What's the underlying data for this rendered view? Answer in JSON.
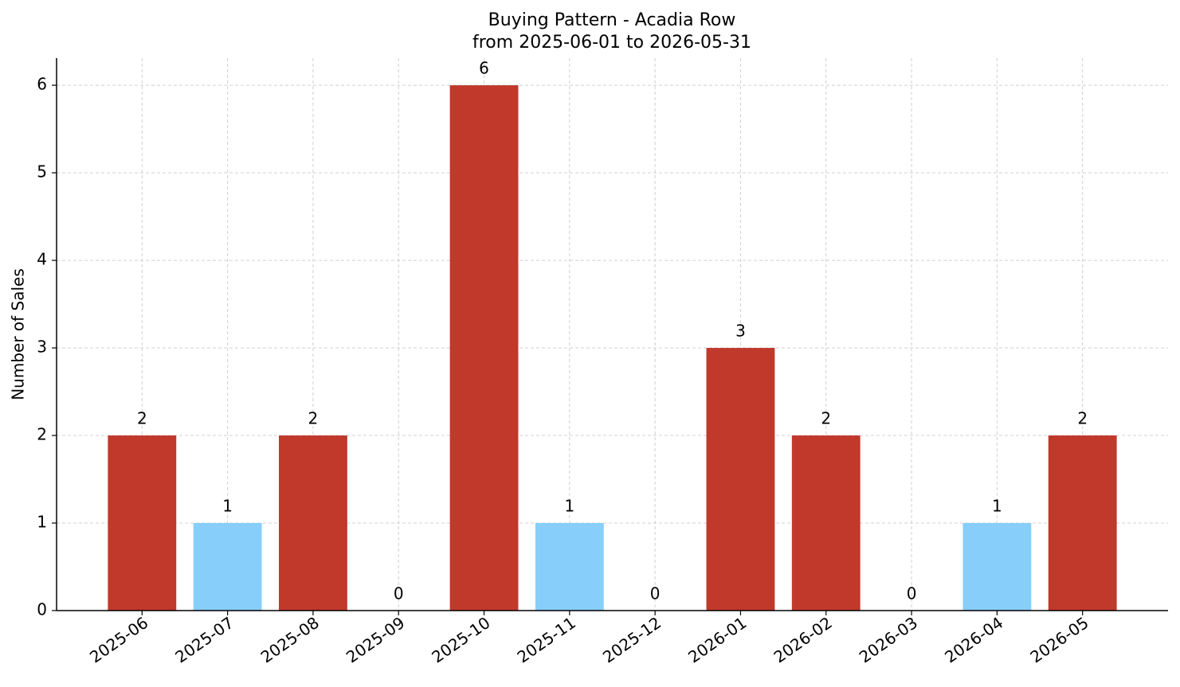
{
  "chart_data": {
    "type": "bar",
    "title": "Buying Pattern - Acadia Row",
    "subtitle": "from 2025-06-01 to 2026-05-31",
    "y_label": "Number of Sales",
    "categories": [
      "2025-06",
      "2025-07",
      "2025-08",
      "2025-09",
      "2025-10",
      "2025-11",
      "2025-12",
      "2026-01",
      "2026-02",
      "2026-03",
      "2026-04",
      "2026-05"
    ],
    "values": [
      2,
      1,
      2,
      0,
      6,
      1,
      0,
      3,
      2,
      0,
      1,
      2
    ],
    "colors": [
      "#c0392b",
      "#87cefa",
      "#c0392b",
      "#c0392b",
      "#c0392b",
      "#87cefa",
      "#c0392b",
      "#c0392b",
      "#c0392b",
      "#c0392b",
      "#87cefa",
      "#c0392b"
    ],
    "ylim": [
      0,
      6.31
    ],
    "yticks": [
      0,
      1,
      2,
      3,
      4,
      5,
      6
    ],
    "grid": true
  }
}
